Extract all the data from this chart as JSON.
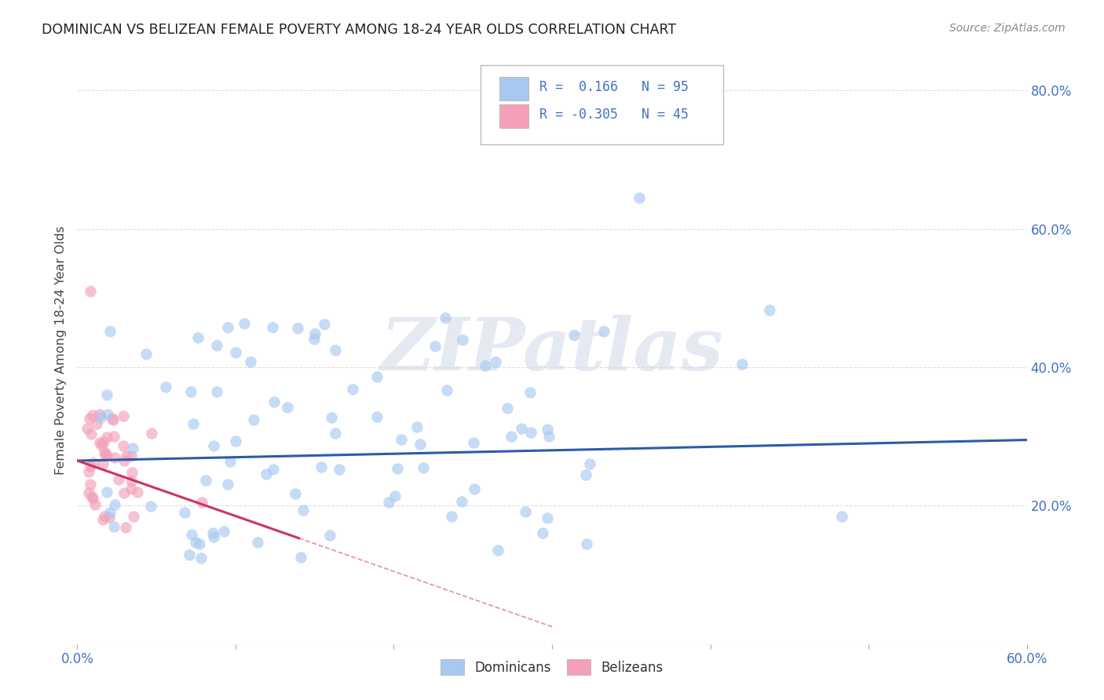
{
  "title": "DOMINICAN VS BELIZEAN FEMALE POVERTY AMONG 18-24 YEAR OLDS CORRELATION CHART",
  "source": "Source: ZipAtlas.com",
  "ylabel": "Female Poverty Among 18-24 Year Olds",
  "xlim": [
    0.0,
    0.6
  ],
  "ylim": [
    0.0,
    0.85
  ],
  "blue_color": "#a8c8f0",
  "pink_color": "#f4a0b8",
  "blue_line_color": "#2a5caa",
  "pink_line_color": "#cc3366",
  "R_blue": 0.166,
  "N_blue": 95,
  "R_pink": -0.305,
  "N_pink": 45,
  "blue_slope": 0.05,
  "blue_intercept": 0.265,
  "pink_slope": -0.8,
  "pink_intercept": 0.265,
  "watermark_text": "ZIPatlas",
  "background_color": "#ffffff",
  "grid_color": "#dddddd",
  "tick_color": "#4472c4",
  "legend_items": [
    {
      "color": "#a8c8f0",
      "R": " 0.166",
      "N": "95"
    },
    {
      "color": "#f4a0b8",
      "R": "-0.305",
      "N": "45"
    }
  ]
}
